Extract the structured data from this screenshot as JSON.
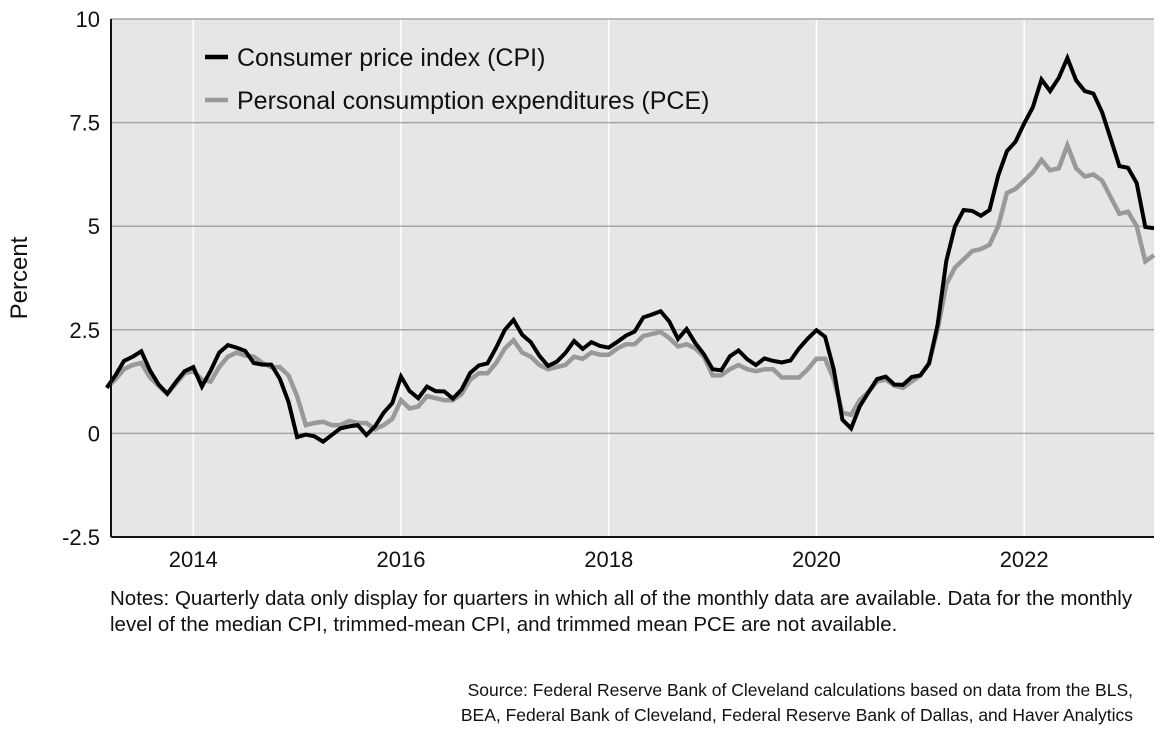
{
  "chart_data": {
    "type": "line",
    "title": "",
    "xlabel": "",
    "ylabel": "Percent",
    "ylim": [
      -2.5,
      10
    ],
    "xlim": [
      2013.208,
      2023.25
    ],
    "yticks": [
      {
        "value": 10,
        "label": "10"
      },
      {
        "value": 7.5,
        "label": "7.5"
      },
      {
        "value": 5,
        "label": "5"
      },
      {
        "value": 2.5,
        "label": "2.5"
      },
      {
        "value": 0,
        "label": "0"
      },
      {
        "value": -2.5,
        "label": "-2.5"
      }
    ],
    "xticks": [
      {
        "value": 2014,
        "label": "2014"
      },
      {
        "value": 2016,
        "label": "2016"
      },
      {
        "value": 2018,
        "label": "2018"
      },
      {
        "value": 2020,
        "label": "2020"
      },
      {
        "value": 2022,
        "label": "2022"
      }
    ],
    "grid": true,
    "legend_position": "top-left",
    "frequency": "monthly",
    "start": "2013-03",
    "end": "2023-03",
    "series": [
      {
        "name": "Consumer price index (CPI)",
        "color": "#000000",
        "values": [
          1.1,
          1.4,
          1.75,
          1.85,
          1.98,
          1.52,
          1.18,
          0.96,
          1.24,
          1.5,
          1.6,
          1.13,
          1.51,
          1.95,
          2.13,
          2.07,
          1.99,
          1.7,
          1.66,
          1.66,
          1.32,
          0.76,
          -0.09,
          -0.03,
          -0.07,
          -0.2,
          -0.04,
          0.12,
          0.17,
          0.2,
          -0.04,
          0.17,
          0.5,
          0.73,
          1.37,
          1.02,
          0.85,
          1.13,
          1.02,
          1.01,
          0.84,
          1.06,
          1.46,
          1.64,
          1.69,
          2.07,
          2.5,
          2.74,
          2.38,
          2.2,
          1.87,
          1.63,
          1.73,
          1.94,
          2.23,
          2.04,
          2.2,
          2.11,
          2.07,
          2.21,
          2.36,
          2.46,
          2.8,
          2.87,
          2.95,
          2.7,
          2.28,
          2.52,
          2.18,
          1.91,
          1.55,
          1.52,
          1.86,
          2.0,
          1.79,
          1.65,
          1.81,
          1.75,
          1.71,
          1.76,
          2.05,
          2.29,
          2.49,
          2.33,
          1.54,
          0.33,
          0.12,
          0.65,
          0.99,
          1.31,
          1.37,
          1.18,
          1.17,
          1.36,
          1.4,
          1.68,
          2.62,
          4.16,
          4.99,
          5.39,
          5.37,
          5.25,
          5.39,
          6.22,
          6.81,
          7.04,
          7.48,
          7.87,
          8.54,
          8.26,
          8.58,
          9.06,
          8.52,
          8.26,
          8.2,
          7.75,
          7.11,
          6.45,
          6.41,
          6.04,
          4.98,
          4.95
        ]
      },
      {
        "name": "Personal consumption expenditures (PCE)",
        "color": "#999999",
        "values": [
          1.1,
          1.3,
          1.55,
          1.65,
          1.7,
          1.35,
          1.15,
          0.95,
          1.2,
          1.45,
          1.5,
          1.3,
          1.25,
          1.6,
          1.85,
          1.95,
          1.88,
          1.85,
          1.7,
          1.6,
          1.6,
          1.4,
          0.9,
          0.2,
          0.25,
          0.28,
          0.2,
          0.2,
          0.3,
          0.25,
          0.25,
          0.1,
          0.2,
          0.35,
          0.8,
          0.6,
          0.65,
          0.9,
          0.85,
          0.8,
          0.8,
          0.95,
          1.3,
          1.45,
          1.45,
          1.7,
          2.05,
          2.25,
          1.95,
          1.85,
          1.65,
          1.55,
          1.6,
          1.65,
          1.85,
          1.8,
          1.95,
          1.9,
          1.9,
          2.05,
          2.15,
          2.15,
          2.35,
          2.4,
          2.45,
          2.3,
          2.1,
          2.15,
          2.05,
          1.85,
          1.4,
          1.4,
          1.55,
          1.65,
          1.55,
          1.5,
          1.55,
          1.55,
          1.35,
          1.35,
          1.35,
          1.55,
          1.8,
          1.8,
          1.3,
          0.5,
          0.45,
          0.8,
          1.0,
          1.25,
          1.3,
          1.15,
          1.1,
          1.25,
          1.4,
          1.7,
          2.5,
          3.6,
          4.0,
          4.2,
          4.4,
          4.45,
          4.55,
          5.0,
          5.8,
          5.9,
          6.1,
          6.3,
          6.6,
          6.35,
          6.4,
          6.95,
          6.4,
          6.2,
          6.25,
          6.1,
          5.7,
          5.3,
          5.35,
          5.0,
          4.15,
          4.3
        ]
      }
    ],
    "legend": [
      {
        "label": "Consumer price index (CPI)",
        "color": "#000000"
      },
      {
        "label": "Personal consumption expenditures (PCE)",
        "color": "#999999"
      }
    ]
  },
  "notes": "Notes: Quarterly data only display for quarters in which all of the monthly data are available. Data for the monthly level of the median CPI, trimmed-mean CPI, and trimmed mean PCE are not available.",
  "source": "Source: Federal Reserve Bank of Cleveland calculations based on data from the BLS, BEA, Federal Bank of Cleveland, Federal Reserve Bank of Dallas, and Haver Analytics",
  "colors": {
    "plot_background": "#e6e6e6",
    "gridline_horizontal": "#a6a6a6",
    "gridline_vertical": "#ffffff",
    "axis": "#111111"
  }
}
